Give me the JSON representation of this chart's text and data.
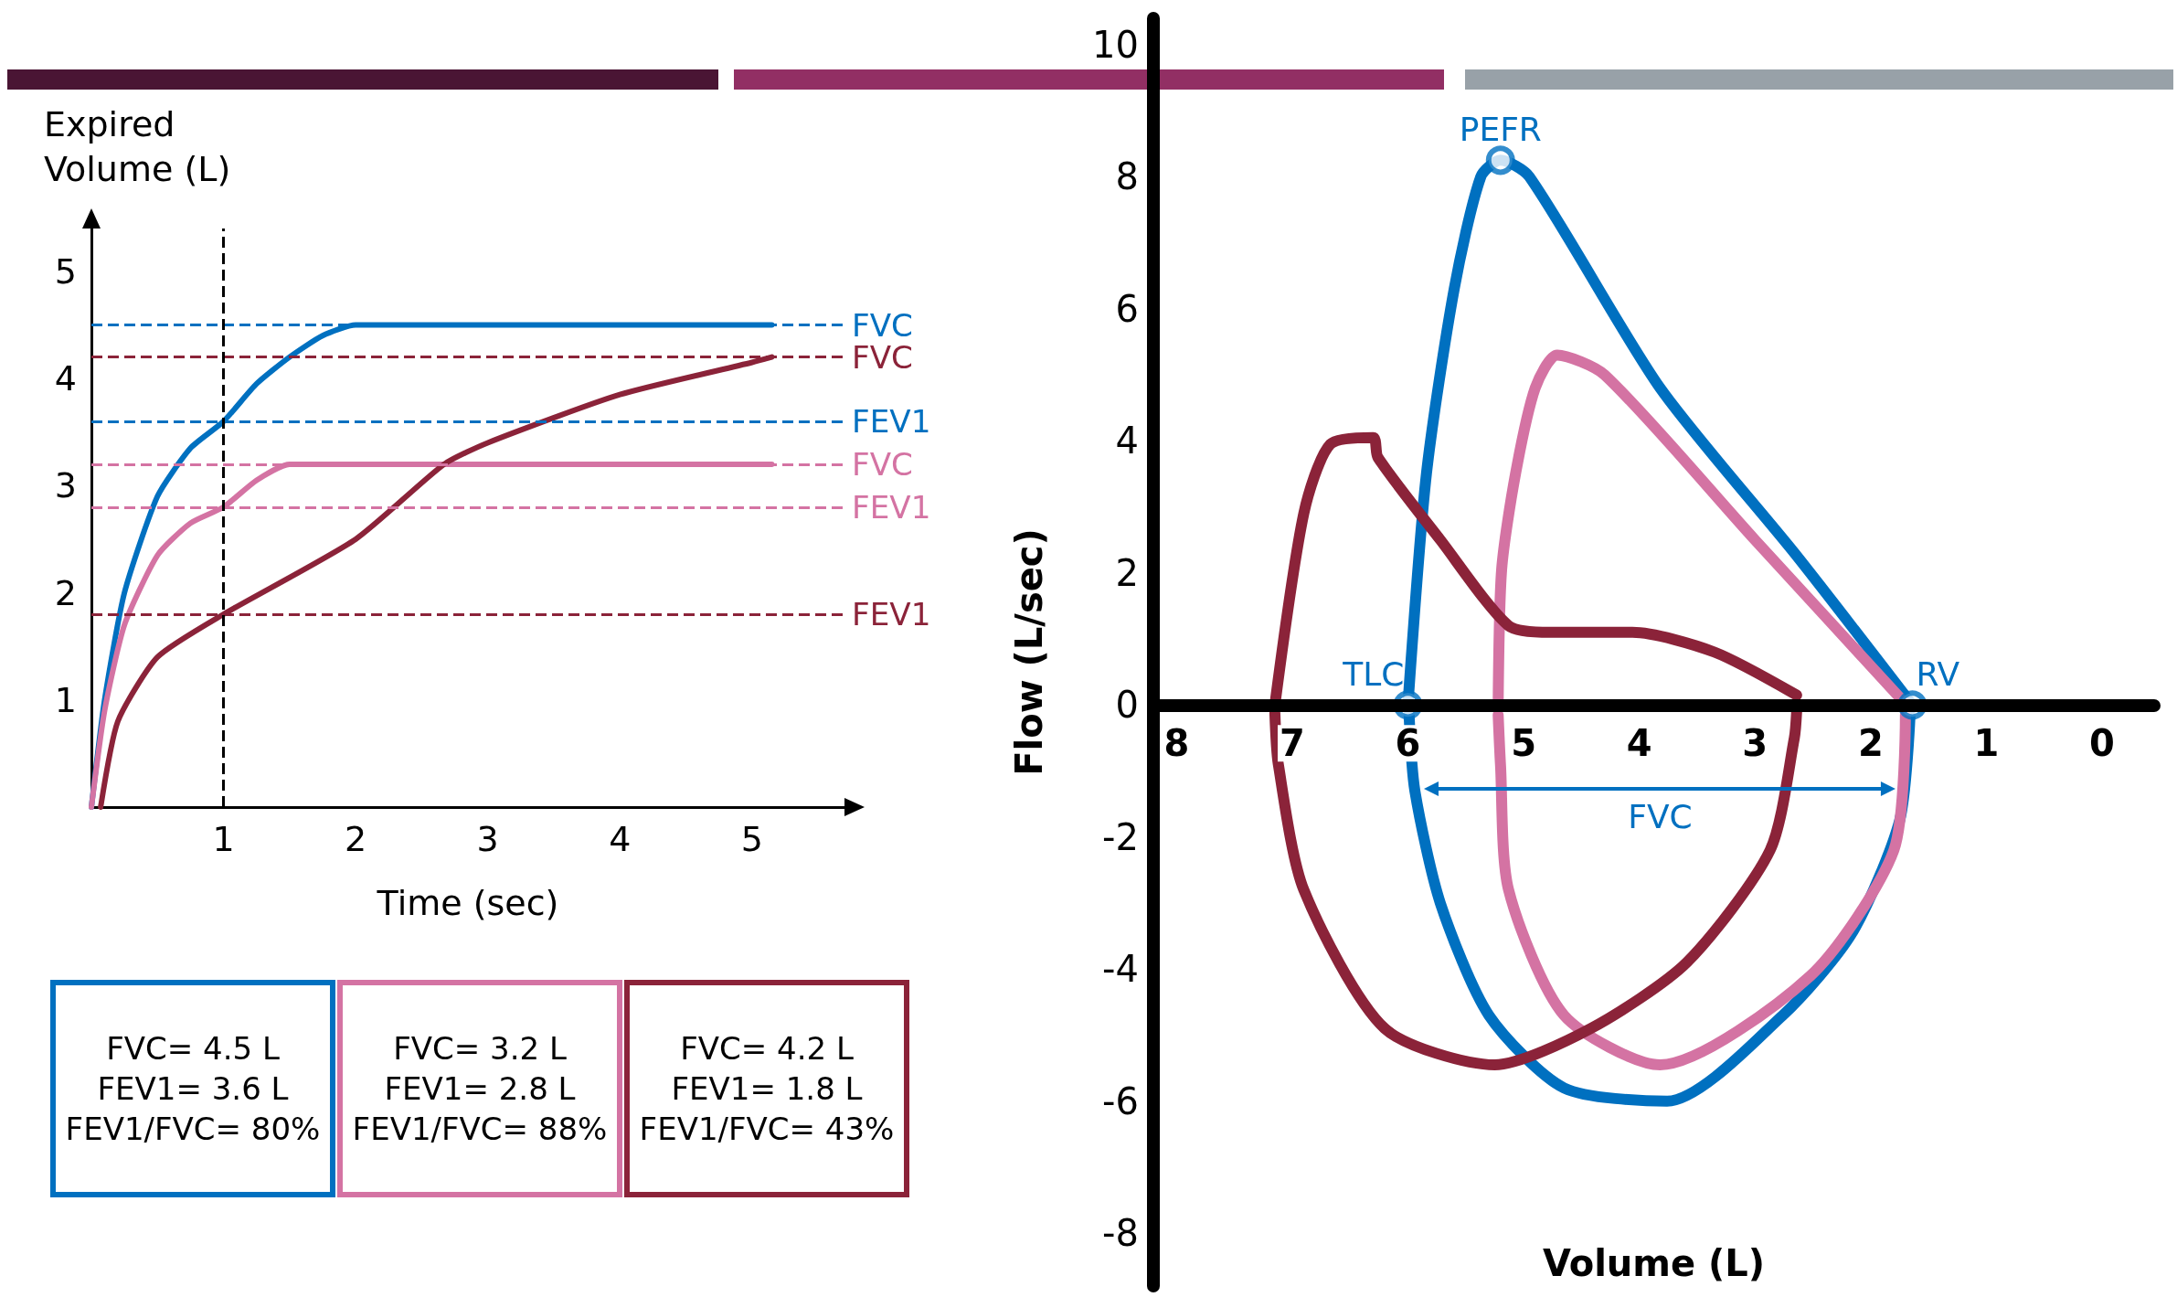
{
  "chart_data": [
    {
      "type": "line",
      "xlabel": "Time (sec)",
      "ylabel": "Expired\nVolume (L)",
      "xlim": [
        0,
        5.7
      ],
      "ylim": [
        0,
        5.4
      ],
      "xticks": [
        1,
        2,
        3,
        4,
        5
      ],
      "yticks": [
        1,
        2,
        3,
        4,
        5
      ],
      "series": [
        {
          "color": "#0070c0",
          "x": [
            0,
            0.1,
            0.25,
            0.5,
            0.75,
            1,
            1.25,
            1.5,
            1.75,
            2,
            5.15
          ],
          "values": [
            0,
            1.0,
            2.0,
            2.9,
            3.35,
            3.6,
            3.95,
            4.2,
            4.4,
            4.5,
            4.5
          ]
        },
        {
          "color": "#d473a3",
          "x": [
            0,
            0.1,
            0.25,
            0.5,
            0.75,
            1,
            1.25,
            1.5,
            5.15
          ],
          "values": [
            0,
            0.9,
            1.7,
            2.35,
            2.65,
            2.8,
            3.05,
            3.2,
            3.2
          ]
        },
        {
          "color": "#8b2339",
          "x": [
            0.07,
            0.2,
            0.5,
            1,
            2,
            2.67,
            3,
            4,
            5,
            5.15
          ],
          "values": [
            0,
            0.8,
            1.4,
            1.8,
            2.5,
            3.2,
            3.4,
            3.85,
            4.15,
            4.2
          ]
        }
      ],
      "ref_lines": [
        {
          "axis": "y",
          "value": 4.5,
          "label": "FVC",
          "color": "#0070c0",
          "line_style": "dashed"
        },
        {
          "axis": "y",
          "value": 4.2,
          "label": "FVC",
          "color": "#8b2339",
          "line_style": "dashed"
        },
        {
          "axis": "y",
          "value": 3.6,
          "label": "FEV1",
          "color": "#0070c0",
          "line_style": "dashed"
        },
        {
          "axis": "y",
          "value": 3.2,
          "label": "FVC",
          "color": "#d473a3",
          "line_style": "dashed"
        },
        {
          "axis": "y",
          "value": 2.8,
          "label": "FEV1",
          "color": "#d473a3",
          "line_style": "dashed"
        },
        {
          "axis": "y",
          "value": 1.8,
          "label": "FEV1",
          "color": "#8b2339",
          "line_style": "dashed"
        },
        {
          "axis": "x",
          "value": 1,
          "label": null,
          "line_style": "dashed"
        }
      ],
      "annotations": [
        "FVC= 4.5 L\nFEV1= 3.6 L\nFEV1/FVC= 80%",
        "FVC= 3.2 L\nFEV1= 2.8 L\nFEV1/FVC= 88%",
        "FVC= 4.2 L\nFEV1= 1.8 L\nFEV1/FVC= 43%"
      ]
    },
    {
      "type": "line",
      "xlabel": "Volume (L)",
      "ylabel": "Flow (L/sec)",
      "xlim": [
        8.2,
        -0.45
      ],
      "ylim": [
        -8.8,
        10.4
      ],
      "xticks": [
        8,
        7,
        6,
        5,
        4,
        3,
        2,
        1,
        0
      ],
      "yticks": [
        -8,
        -6,
        -4,
        -2,
        0,
        2,
        4,
        6,
        8,
        10
      ],
      "series": [
        {
          "color": "#0070c0",
          "x": [
            6.0,
            5.84,
            5.6,
            5.37,
            5.2,
            4.95,
            3.82,
            2.64,
            1.64
          ],
          "values": [
            0,
            3.5,
            6.3,
            8.0,
            8.25,
            8.0,
            4.8,
            2.26,
            0
          ]
        },
        {
          "color": "#0070c0",
          "x": [
            1.66,
            1.75,
            2.16,
            2.76,
            3.76,
            4.65,
            5.3,
            5.72,
            5.94,
            5.99
          ],
          "values": [
            -0.15,
            -1.75,
            -3.45,
            -4.7,
            -6.0,
            -5.8,
            -4.7,
            -3.0,
            -1.3,
            -0.15
          ]
        },
        {
          "color": "#d473a3",
          "x": [
            5.22,
            5.19,
            5.07,
            4.9,
            4.71,
            4.3,
            3.0,
            1.69
          ],
          "values": [
            0,
            2.05,
            3.5,
            4.8,
            5.3,
            5.0,
            2.5,
            0
          ]
        },
        {
          "color": "#d473a3",
          "x": [
            1.7,
            1.8,
            2.52,
            3.82,
            4.65,
            5.13,
            5.2,
            5.22
          ],
          "values": [
            -0.15,
            -2.2,
            -4.1,
            -5.45,
            -4.7,
            -2.8,
            -0.9,
            -0.15
          ]
        },
        {
          "color": "#8b2339",
          "x": [
            7.15,
            6.9,
            6.67,
            6.3,
            6.26,
            5.72,
            5.13,
            4.77,
            4.06,
            3.35,
            2.64
          ],
          "values": [
            0,
            2.9,
            3.95,
            4.05,
            3.75,
            2.5,
            1.2,
            1.1,
            1.1,
            0.8,
            0.15
          ]
        },
        {
          "color": "#8b2339",
          "x": [
            2.64,
            2.66,
            2.87,
            3.59,
            4.42,
            5.25,
            6.2,
            6.9,
            7.12,
            7.15
          ],
          "values": [
            -0.1,
            -0.5,
            -2.2,
            -3.9,
            -4.9,
            -5.45,
            -4.9,
            -2.8,
            -0.9,
            -0.12
          ]
        },
        {
          "type": "scatter",
          "marker": "circle",
          "color": "#0070c0",
          "x": [
            6.0,
            5.2,
            1.64
          ],
          "values": [
            0,
            8.25,
            0
          ]
        }
      ],
      "annotations": [
        {
          "text": "PEFR",
          "x": 5.2,
          "y": 8.25
        },
        {
          "text": "TLC",
          "x": 6.0,
          "y": 0
        },
        {
          "text": "RV",
          "x": 1.64,
          "y": 0
        },
        "FVC"
      ]
    }
  ]
}
